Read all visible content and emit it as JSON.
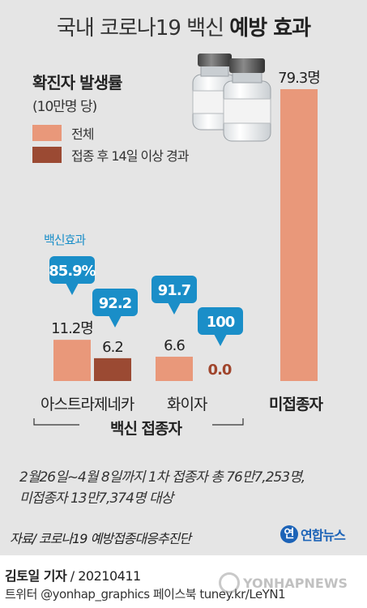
{
  "header": {
    "title_normal": "국내 코로나19 백신",
    "title_bold": "예방 효과"
  },
  "colors": {
    "panel": "#e5e5e5",
    "overall": "#e9987a",
    "after14": "#9b4a33",
    "callout": "#1a8ec8"
  },
  "chart_data": {
    "type": "bar",
    "title": "확진자 발생률",
    "unit": "(10만명 당)",
    "categories": [
      "아스트라제네카",
      "화이자",
      "미접종자"
    ],
    "group_label": "백신 접종자",
    "efficacy_label": "백신효과",
    "series": [
      {
        "name": "전체",
        "values": [
          11.2,
          6.6,
          79.3
        ],
        "labels": [
          "11.2명",
          "6.6",
          "79.3명"
        ]
      },
      {
        "name": "접종 후 14일 이상 경과",
        "values": [
          6.2,
          0.0,
          null
        ],
        "labels": [
          "6.2",
          "0.0",
          ""
        ]
      }
    ],
    "efficacy": [
      {
        "category": "아스트라제네카",
        "overall": "85.9%",
        "after14": "92.2"
      },
      {
        "category": "화이자",
        "overall": "91.7",
        "after14": "100"
      }
    ],
    "ylim": [
      0,
      79.3
    ],
    "grid": false,
    "legend_position": "top-left"
  },
  "footnote": {
    "line1": "2월26일~4월 8일까지 1차 접종자 총 76만7,253명,",
    "line2": "미접종자 13만7,374명 대상"
  },
  "source": "자료/ 코로나19 예방접종대응추진단",
  "logo": {
    "mark": "연",
    "text": "연합뉴스"
  },
  "byline": {
    "author": "김토일 기자",
    "date": " / 20210411"
  },
  "social": "트위터 @yonhap_graphics  페이스북 tuney.kr/LeYN1",
  "watermark": "YONHAPNEWS"
}
